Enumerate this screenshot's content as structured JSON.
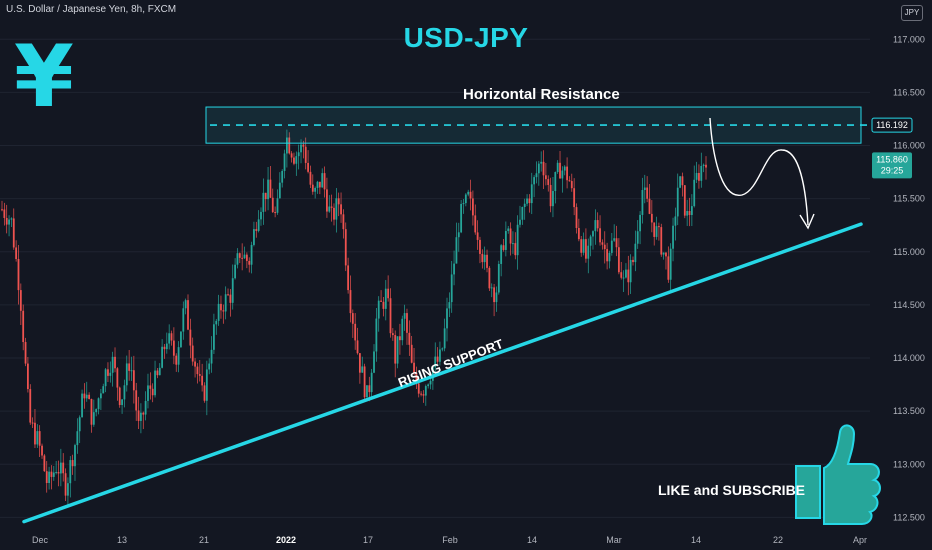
{
  "header": {
    "title": "U.S. Dollar / Japanese Yen, 8h, FXCM",
    "currency": "JPY"
  },
  "headline": "USD-JPY",
  "yen_symbol": "¥",
  "annotations": {
    "resistance": "Horizontal Resistance",
    "support": "RISING SUPPORT",
    "cta": "LIKE and SUBSCRIBE"
  },
  "colors": {
    "background": "#131722",
    "up": "#26a69a",
    "down": "#ef5350",
    "accent": "#26d7e6",
    "grid": "#1f2431",
    "axis_text": "#b2b5be"
  },
  "icons": {
    "thumb": "thumbs-up-icon"
  },
  "chart_data": {
    "type": "candlestick",
    "title": "USD-JPY",
    "ylim": [
      112.4,
      117.2
    ],
    "y_ticks": [
      112.5,
      113.0,
      113.5,
      114.0,
      114.5,
      115.0,
      115.5,
      116.0,
      116.5,
      117.0
    ],
    "x_ticks": [
      "Dec",
      "13",
      "21",
      "2022",
      "17",
      "Feb",
      "14",
      "Mar",
      "14",
      "22",
      "Apr"
    ],
    "resistance_level": 116.192,
    "last_price": "115.860",
    "countdown": "29:25",
    "support_line": {
      "start_price": 112.46,
      "end_price": 115.26
    },
    "path": [
      [
        0,
        115.4
      ],
      [
        2,
        115.3
      ],
      [
        4,
        114.6
      ],
      [
        6,
        113.4
      ],
      [
        8,
        113.2
      ],
      [
        10,
        112.8
      ],
      [
        12,
        113.0
      ],
      [
        14,
        112.8
      ],
      [
        16,
        113.2
      ],
      [
        18,
        113.7
      ],
      [
        20,
        113.4
      ],
      [
        22,
        113.8
      ],
      [
        24,
        114.0
      ],
      [
        26,
        113.6
      ],
      [
        28,
        114.0
      ],
      [
        30,
        113.3
      ],
      [
        32,
        113.7
      ],
      [
        34,
        113.8
      ],
      [
        36,
        114.2
      ],
      [
        38,
        114.0
      ],
      [
        40,
        114.5
      ],
      [
        42,
        114.0
      ],
      [
        44,
        113.6
      ],
      [
        46,
        114.2
      ],
      [
        48,
        114.5
      ],
      [
        50,
        114.6
      ],
      [
        52,
        115.0
      ],
      [
        54,
        114.9
      ],
      [
        56,
        115.4
      ],
      [
        58,
        115.6
      ],
      [
        60,
        115.3
      ],
      [
        62,
        116.1
      ],
      [
        64,
        115.9
      ],
      [
        66,
        116.0
      ],
      [
        68,
        115.5
      ],
      [
        70,
        115.7
      ],
      [
        72,
        115.3
      ],
      [
        74,
        115.5
      ],
      [
        76,
        114.6
      ],
      [
        78,
        114.0
      ],
      [
        80,
        113.6
      ],
      [
        82,
        114.4
      ],
      [
        84,
        114.6
      ],
      [
        86,
        114.0
      ],
      [
        88,
        114.4
      ],
      [
        90,
        113.8
      ],
      [
        92,
        113.7
      ],
      [
        94,
        113.9
      ],
      [
        96,
        114.0
      ],
      [
        98,
        114.6
      ],
      [
        100,
        115.3
      ],
      [
        102,
        115.5
      ],
      [
        104,
        115.2
      ],
      [
        106,
        114.8
      ],
      [
        108,
        114.6
      ],
      [
        110,
        115.2
      ],
      [
        112,
        115.0
      ],
      [
        114,
        115.4
      ],
      [
        116,
        115.6
      ],
      [
        118,
        115.9
      ],
      [
        120,
        115.5
      ],
      [
        122,
        115.8
      ],
      [
        124,
        115.7
      ],
      [
        126,
        115.2
      ],
      [
        128,
        114.9
      ],
      [
        130,
        115.3
      ],
      [
        132,
        115.0
      ],
      [
        134,
        115.1
      ],
      [
        136,
        114.7
      ],
      [
        138,
        114.9
      ],
      [
        140,
        115.6
      ],
      [
        142,
        115.3
      ],
      [
        144,
        115.1
      ],
      [
        146,
        114.8
      ],
      [
        148,
        115.7
      ],
      [
        150,
        115.3
      ],
      [
        152,
        115.7
      ],
      [
        154,
        115.9
      ]
    ]
  }
}
